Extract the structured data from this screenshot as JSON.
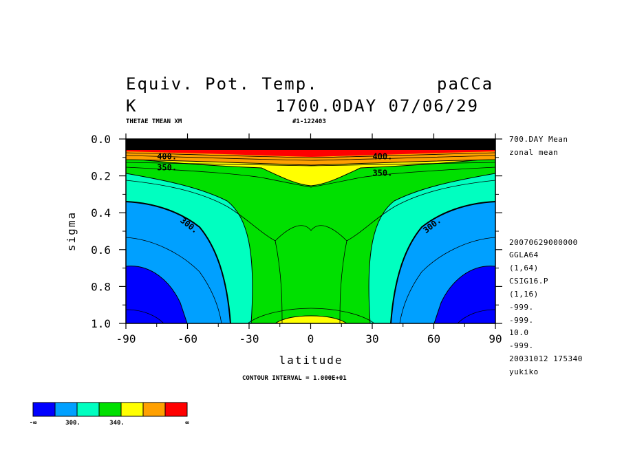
{
  "header": {
    "title": "Equiv. Pot. Temp.",
    "run": "paCCa",
    "units": "K",
    "time": "1700.0DAY 07/06/29",
    "varname": "THETAE TMEAN XM",
    "run_id": "#1-122403"
  },
  "side_info": {
    "mean": "700.DAY Mean",
    "zonal": "zonal mean",
    "lines": [
      "20070629000000",
      "GGLA64",
      "(1,64)",
      "CSIG16.P",
      "(1,16)",
      "-999.",
      "-999.",
      "10.0",
      "-999.",
      "20031012 175340",
      "yukiko"
    ]
  },
  "footer": {
    "interval": "CONTOUR INTERVAL = 1.000E+01"
  },
  "colorbar": {
    "colors": [
      "#0000ff",
      "#00a0ff",
      "#00ffc0",
      "#00e000",
      "#ffff00",
      "#ffa000",
      "#ff0000"
    ],
    "labels": [
      "-∞",
      "300.",
      "340.",
      "∞"
    ]
  },
  "chart_data": {
    "type": "heatmap",
    "xlabel": "latitude",
    "ylabel": "sigma",
    "xlim": [
      -90,
      90
    ],
    "ylim": [
      1.0,
      0.0
    ],
    "x_ticks": [
      "-90",
      "-60",
      "-30",
      "0",
      "30",
      "60",
      "90"
    ],
    "y_ticks": [
      "0.0",
      "0.2",
      "0.4",
      "0.6",
      "0.8",
      "1.0"
    ],
    "contour_interval": 10,
    "contour_labels": [
      {
        "text": "300.",
        "lat": -60,
        "sigma": 0.48
      },
      {
        "text": "300.",
        "lat": 60,
        "sigma": 0.48
      },
      {
        "text": "350.",
        "lat": -70,
        "sigma": 0.17
      },
      {
        "text": "350.",
        "lat": 35,
        "sigma": 0.2
      },
      {
        "text": "400.",
        "lat": -70,
        "sigma": 0.11
      },
      {
        "text": "400.",
        "lat": 35,
        "sigma": 0.11
      }
    ],
    "bands": [
      {
        "level": "<300",
        "color": "#0000ff"
      },
      {
        "level": "300-320",
        "color": "#00a0ff"
      },
      {
        "level": "320-340",
        "color": "#00ffc0"
      },
      {
        "level": "340-350",
        "color": "#00e000"
      },
      {
        "level": "350-360",
        "color": "#ffff00"
      },
      {
        "level": "360-400",
        "color": "#ffa000"
      },
      {
        "level": ">400",
        "color": "#ff0000"
      }
    ]
  }
}
